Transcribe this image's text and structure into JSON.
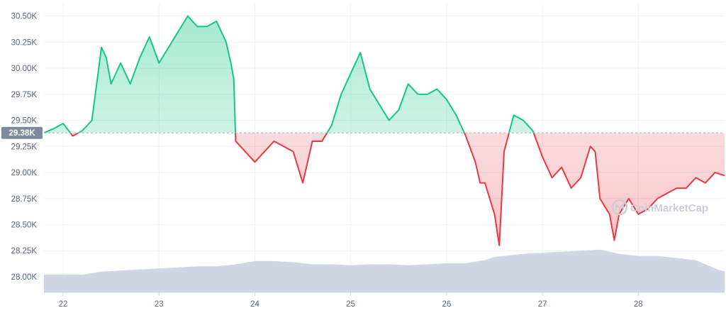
{
  "chart_data": {
    "type": "line",
    "series": [
      {
        "x": [
          21.8,
          21.9,
          22.0,
          22.1,
          22.2,
          22.3,
          22.4,
          22.45,
          22.5,
          22.6,
          22.7,
          22.8,
          22.9,
          23.0,
          23.1,
          23.2,
          23.3,
          23.4,
          23.5,
          23.6,
          23.7,
          23.75,
          23.78,
          23.8,
          23.9,
          24.0,
          24.1,
          24.2,
          24.3,
          24.4,
          24.5,
          24.6,
          24.7,
          24.8,
          24.9,
          25.0,
          25.1,
          25.2,
          25.3,
          25.4,
          25.5,
          25.6,
          25.7,
          25.8,
          25.9,
          26.0,
          26.1,
          26.2,
          26.3,
          26.35,
          26.4,
          26.5,
          26.55,
          26.6,
          26.7,
          26.8,
          26.9,
          27.0,
          27.1,
          27.2,
          27.3,
          27.4,
          27.5,
          27.55,
          27.6,
          27.7,
          27.75,
          27.8,
          27.9,
          28.0,
          28.1,
          28.2,
          28.3,
          28.4,
          28.5,
          28.6,
          28.7,
          28.8,
          28.9
        ],
        "y": [
          29.38,
          29.42,
          29.47,
          29.35,
          29.4,
          29.5,
          30.2,
          30.1,
          29.85,
          30.05,
          29.85,
          30.1,
          30.3,
          30.05,
          30.2,
          30.35,
          30.5,
          30.4,
          30.4,
          30.45,
          30.25,
          30.05,
          29.9,
          29.3,
          29.2,
          29.1,
          29.2,
          29.3,
          29.25,
          29.2,
          28.9,
          29.3,
          29.3,
          29.45,
          29.75,
          29.95,
          30.15,
          29.8,
          29.65,
          29.5,
          29.6,
          29.85,
          29.75,
          29.75,
          29.8,
          29.7,
          29.55,
          29.35,
          29.1,
          28.9,
          28.9,
          28.6,
          28.3,
          29.2,
          29.55,
          29.5,
          29.4,
          29.15,
          28.95,
          29.05,
          28.85,
          28.95,
          29.25,
          29.2,
          28.75,
          28.6,
          28.35,
          28.6,
          28.75,
          28.6,
          28.65,
          28.75,
          28.8,
          28.85,
          28.85,
          28.95,
          28.9,
          29.0,
          28.97
        ]
      }
    ],
    "baseline": 29.38,
    "baseline_label": "29.38K",
    "y_ticks": [
      {
        "v": 30.5,
        "label": "30.50K"
      },
      {
        "v": 30.25,
        "label": "30.25K"
      },
      {
        "v": 30.0,
        "label": "30.00K"
      },
      {
        "v": 29.75,
        "label": "29.75K"
      },
      {
        "v": 29.5,
        "label": "29.50K"
      },
      {
        "v": 29.25,
        "label": "29.25K"
      },
      {
        "v": 29.0,
        "label": "29.00K"
      },
      {
        "v": 28.75,
        "label": "28.75K"
      },
      {
        "v": 28.5,
        "label": "28.50K"
      },
      {
        "v": 28.25,
        "label": "28.25K"
      },
      {
        "v": 28.0,
        "label": "28.00K"
      }
    ],
    "x_ticks": [
      {
        "v": 22,
        "label": "22"
      },
      {
        "v": 23,
        "label": "23"
      },
      {
        "v": 24,
        "label": "24"
      },
      {
        "v": 25,
        "label": "25"
      },
      {
        "v": 26,
        "label": "26"
      },
      {
        "v": 27,
        "label": "27"
      },
      {
        "v": 28,
        "label": "28"
      }
    ],
    "xlim": [
      21.8,
      28.9
    ],
    "ylim": [
      27.85,
      30.62
    ],
    "volume": {
      "x": [
        21.8,
        22.0,
        22.2,
        22.4,
        22.6,
        22.8,
        23.0,
        23.2,
        23.4,
        23.6,
        23.8,
        24.0,
        24.2,
        24.4,
        24.6,
        24.8,
        25.0,
        25.2,
        25.4,
        25.6,
        25.8,
        26.0,
        26.2,
        26.4,
        26.5,
        26.6,
        26.8,
        27.0,
        27.2,
        27.4,
        27.6,
        27.8,
        28.0,
        28.2,
        28.4,
        28.6,
        28.8,
        28.9
      ],
      "y": [
        28.02,
        28.02,
        28.02,
        28.05,
        28.06,
        28.07,
        28.08,
        28.09,
        28.1,
        28.1,
        28.12,
        28.15,
        28.15,
        28.14,
        28.12,
        28.12,
        28.11,
        28.12,
        28.12,
        28.11,
        28.12,
        28.13,
        28.13,
        28.16,
        28.19,
        28.2,
        28.22,
        28.23,
        28.24,
        28.25,
        28.26,
        28.22,
        28.2,
        28.2,
        28.18,
        28.16,
        28.08,
        28.05
      ]
    },
    "colors": {
      "up": "#16c784",
      "down": "#ea3943",
      "volume": "#cfd6e4",
      "grid": "#eff2f5",
      "label_bg": "#808a9d",
      "axis_text": "#58667e"
    },
    "grid": true,
    "watermark": "CoinMarketCap"
  }
}
